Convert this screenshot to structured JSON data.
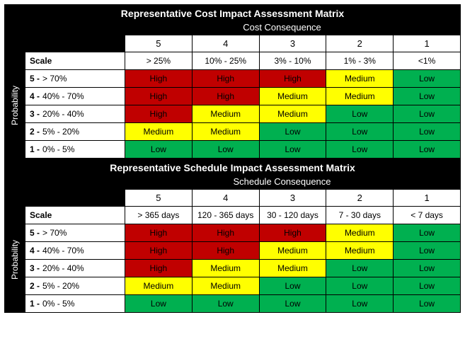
{
  "colors": {
    "high_bg": "#c00000",
    "high_text": "#000000",
    "medium_bg": "#ffff00",
    "medium_text": "#000000",
    "low_bg": "#00b050",
    "low_text": "#000000",
    "black": "#000000",
    "white": "#ffffff"
  },
  "labels": {
    "probability": "Probability",
    "scale": "Scale",
    "high": "High",
    "medium": "Medium",
    "low": "Low"
  },
  "matrices": [
    {
      "title": "Representative Cost Impact Assessment Matrix",
      "subtitle": "Cost Consequence",
      "col_numbers": [
        "5",
        "4",
        "3",
        "2",
        "1"
      ],
      "scale_headers": [
        "> 25%",
        "10% - 25%",
        "3% - 10%",
        "1% - 3%",
        "<1%"
      ],
      "rows": [
        {
          "num": "5 -",
          "label": "> 70%",
          "risks": [
            "High",
            "High",
            "High",
            "Medium",
            "Low"
          ]
        },
        {
          "num": "4 -",
          "label": "40% - 70%",
          "risks": [
            "High",
            "High",
            "Medium",
            "Medium",
            "Low"
          ]
        },
        {
          "num": "3 -",
          "label": "20% - 40%",
          "risks": [
            "High",
            "Medium",
            "Medium",
            "Low",
            "Low"
          ]
        },
        {
          "num": "2 -",
          "label": "5% - 20%",
          "risks": [
            "Medium",
            "Medium",
            "Low",
            "Low",
            "Low"
          ]
        },
        {
          "num": "1 -",
          "label": "0% - 5%",
          "risks": [
            "Low",
            "Low",
            "Low",
            "Low",
            "Low"
          ]
        }
      ]
    },
    {
      "title": "Representative Schedule Impact Assessment Matrix",
      "subtitle": "Schedule Consequence",
      "col_numbers": [
        "5",
        "4",
        "3",
        "2",
        "1"
      ],
      "scale_headers": [
        "> 365 days",
        "120 - 365 days",
        "30 - 120 days",
        "7 - 30 days",
        "< 7 days"
      ],
      "rows": [
        {
          "num": "5 -",
          "label": "> 70%",
          "risks": [
            "High",
            "High",
            "High",
            "Medium",
            "Low"
          ]
        },
        {
          "num": "4 -",
          "label": "40% - 70%",
          "risks": [
            "High",
            "High",
            "Medium",
            "Medium",
            "Low"
          ]
        },
        {
          "num": "3 -",
          "label": "20% - 40%",
          "risks": [
            "High",
            "Medium",
            "Medium",
            "Low",
            "Low"
          ]
        },
        {
          "num": "2 -",
          "label": "5% - 20%",
          "risks": [
            "Medium",
            "Medium",
            "Low",
            "Low",
            "Low"
          ]
        },
        {
          "num": "1 -",
          "label": "0% - 5%",
          "risks": [
            "Low",
            "Low",
            "Low",
            "Low",
            "Low"
          ]
        }
      ]
    }
  ]
}
